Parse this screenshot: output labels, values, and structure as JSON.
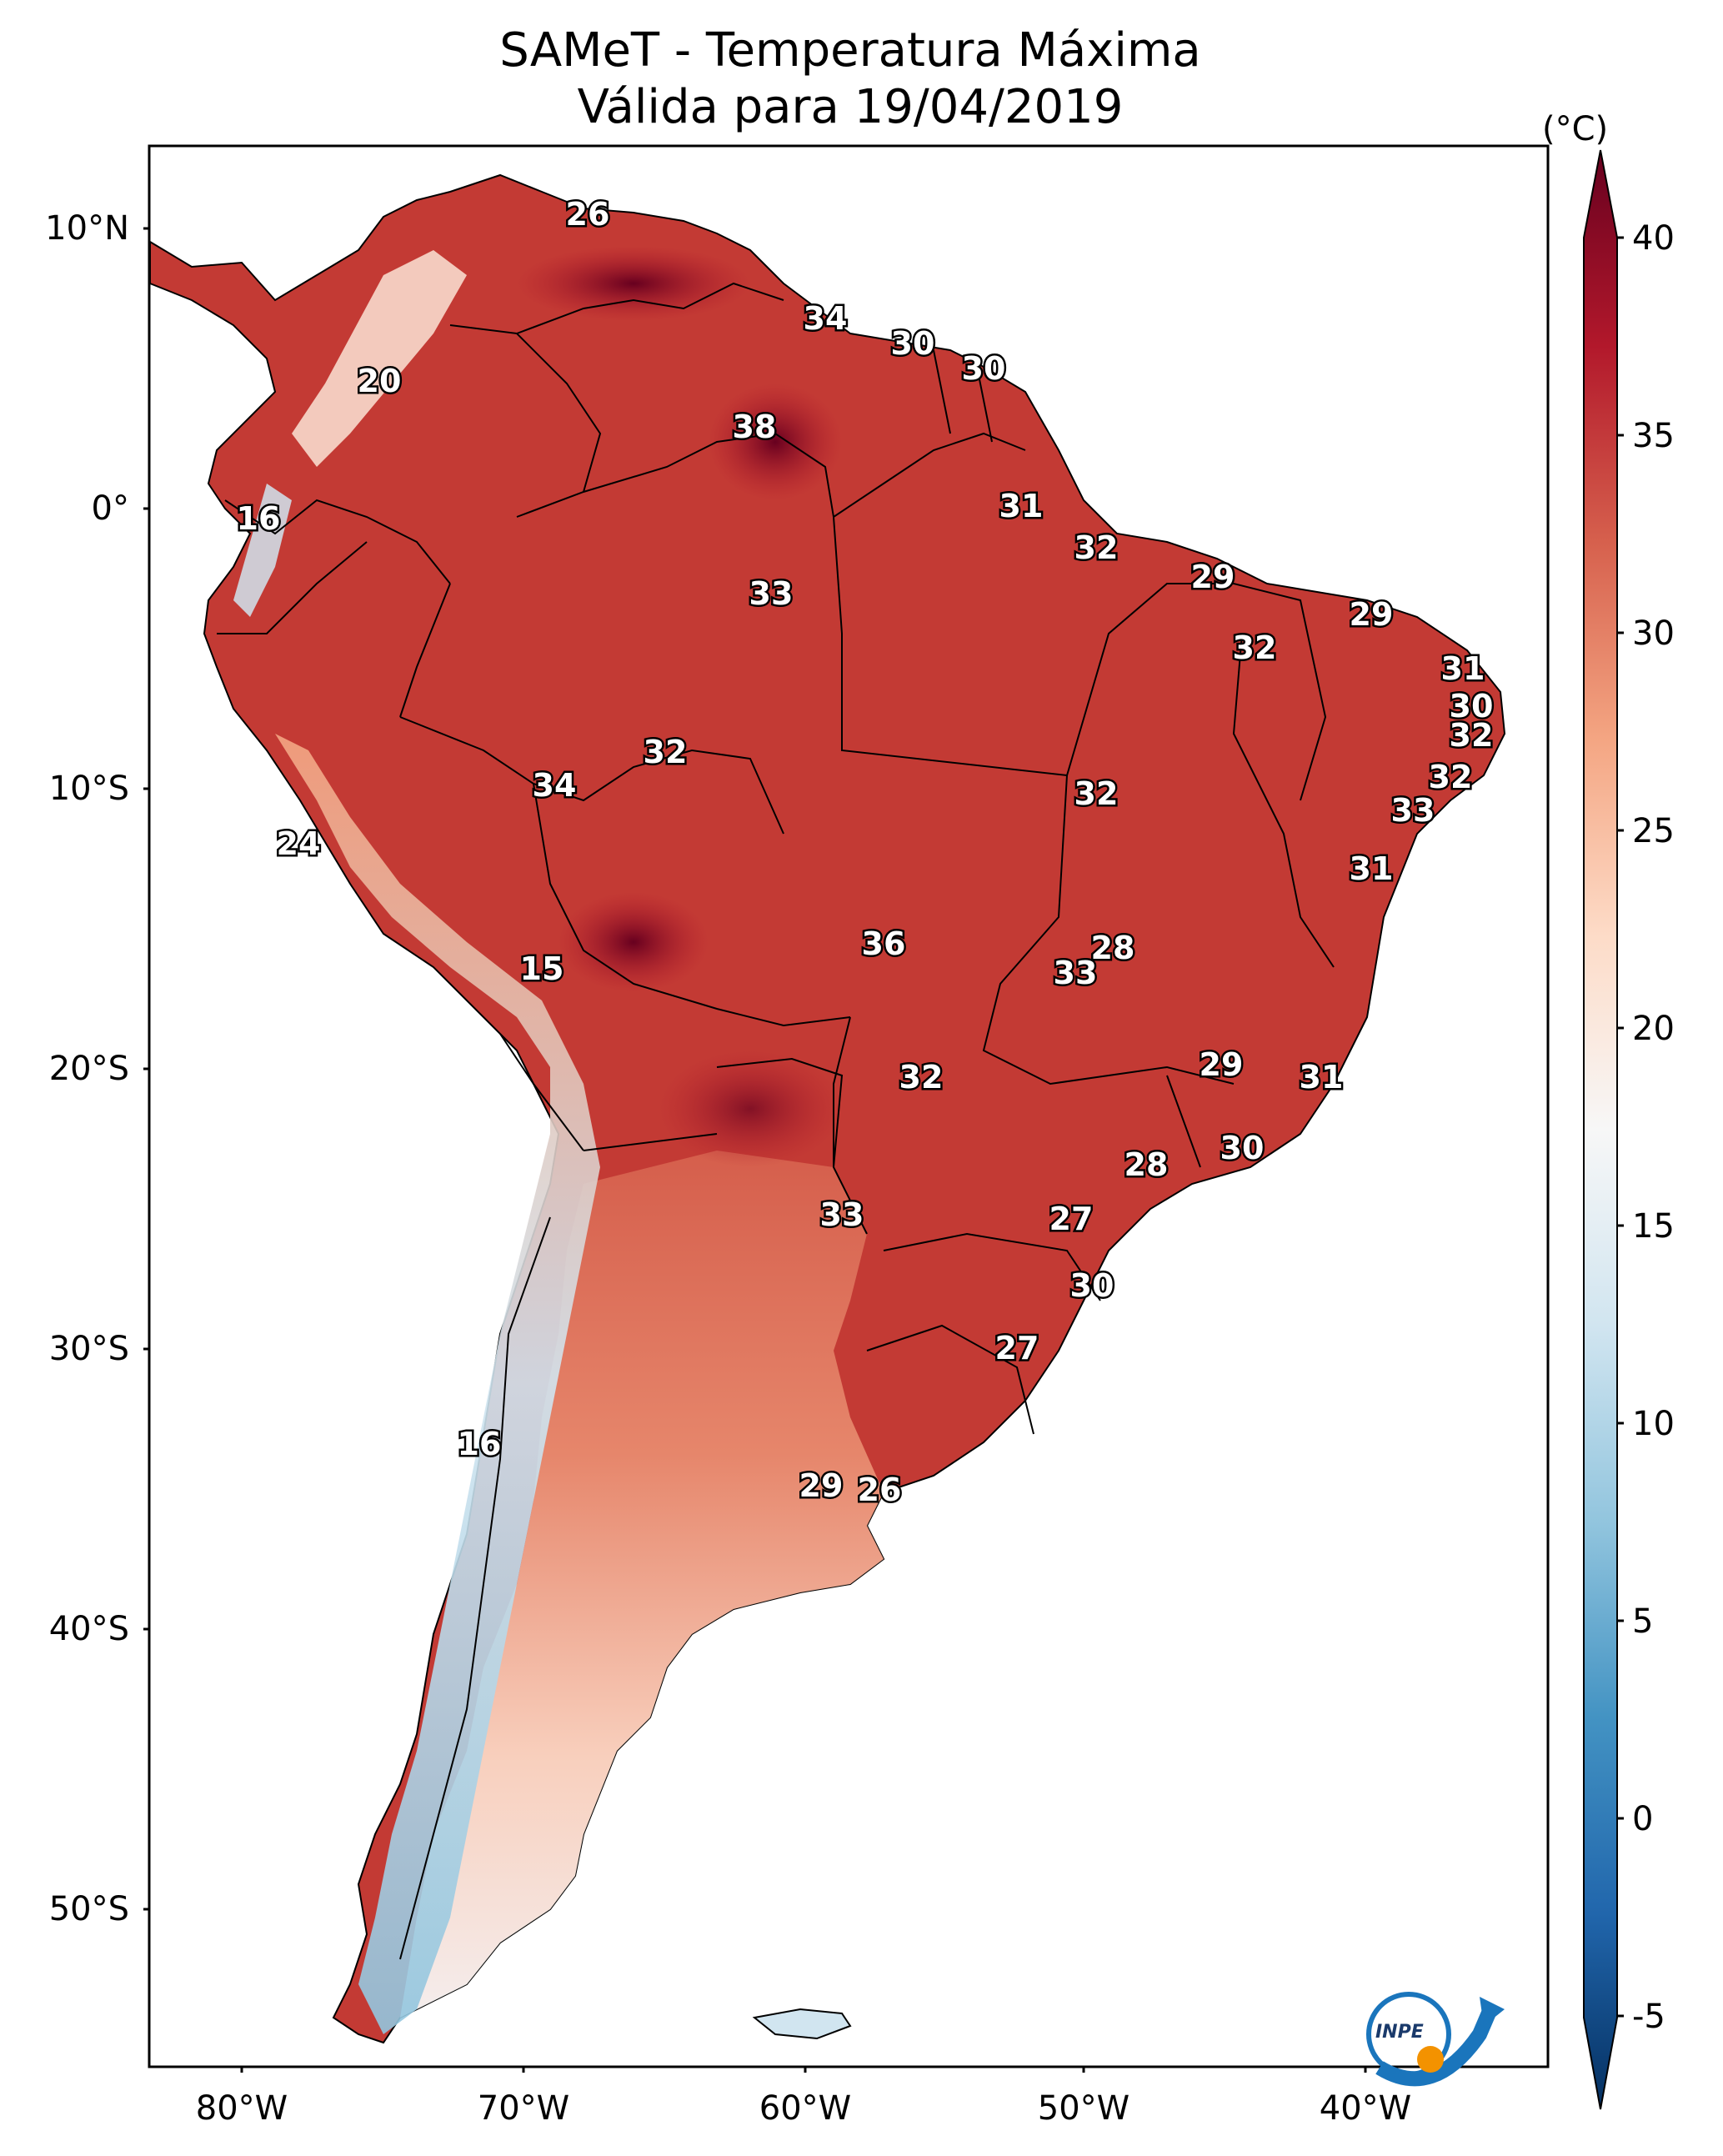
{
  "title": {
    "line1": "SAMeT - Temperatura Máxima",
    "line2": "Válida para 19/04/2019"
  },
  "axes": {
    "lat_ticks": [
      "10°N",
      "0°",
      "10°S",
      "20°S",
      "30°S",
      "40°S",
      "50°S"
    ],
    "lon_ticks": [
      "80°W",
      "70°W",
      "60°W",
      "50°W",
      "40°W"
    ]
  },
  "colorbar": {
    "unit": "(°C)",
    "ticks": [
      "40",
      "35",
      "30",
      "25",
      "20",
      "15",
      "10",
      "5",
      "0",
      "-5"
    ],
    "colors": [
      "#053061",
      "#2166ac",
      "#4393c3",
      "#92c5de",
      "#d1e5f0",
      "#f7f7f7",
      "#fddbc7",
      "#f4a582",
      "#d6604d",
      "#b2182b",
      "#67001f"
    ]
  },
  "map_labels": [
    "26",
    "34",
    "30",
    "30",
    "20",
    "38",
    "16",
    "31",
    "32",
    "29",
    "33",
    "29",
    "32",
    "31",
    "30",
    "32",
    "32",
    "34",
    "32",
    "32",
    "33",
    "24",
    "31",
    "28",
    "36",
    "15",
    "33",
    "29",
    "31",
    "32",
    "30",
    "28",
    "33",
    "27",
    "30",
    "27",
    "16",
    "29",
    "26"
  ],
  "logo": "INPE"
}
